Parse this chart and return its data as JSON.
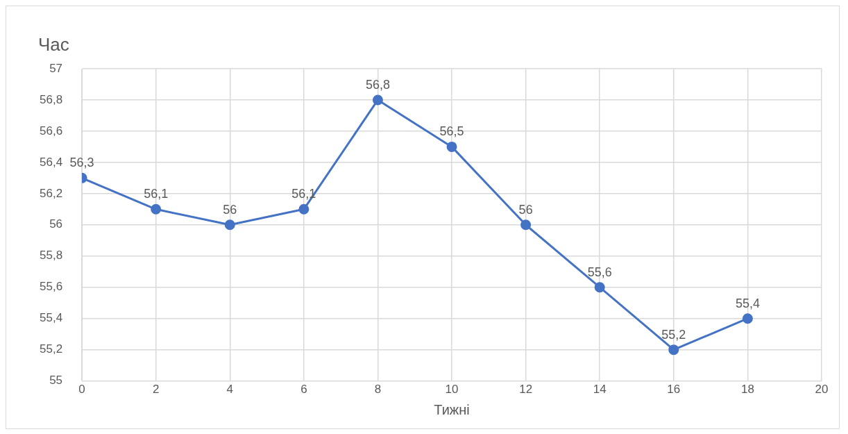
{
  "chart_data": {
    "type": "line",
    "ylabel": "Час",
    "xlabel": "Тижні",
    "x": [
      0,
      2,
      4,
      6,
      8,
      10,
      12,
      14,
      16,
      18
    ],
    "series": [
      {
        "color": "#4472c4",
        "values": [
          56.3,
          56.1,
          56,
          56.1,
          56.8,
          56.5,
          56,
          55.6,
          55.2,
          55.4
        ],
        "value_labels": [
          "56,3",
          "56,1",
          "56",
          "56,1",
          "56,8",
          "56,5",
          "56",
          "55,6",
          "55,2",
          "55,4"
        ]
      }
    ],
    "xlim": [
      0,
      20
    ],
    "xticks": [
      0,
      2,
      4,
      6,
      8,
      10,
      12,
      14,
      16,
      18,
      20
    ],
    "ylim": [
      55,
      57
    ],
    "yticks": [
      55,
      {
        "value": 55.2,
        "label": "55,2"
      },
      {
        "value": 55.4,
        "label": "55,4"
      },
      {
        "value": 55.6,
        "label": "55,6"
      },
      {
        "value": 55.8,
        "label": "55,8"
      },
      56,
      {
        "value": 56.2,
        "label": "56,2"
      },
      {
        "value": 56.4,
        "label": "56,4"
      },
      {
        "value": 56.6,
        "label": "56,6"
      },
      {
        "value": 56.8,
        "label": "56,8"
      },
      57
    ],
    "grid": true,
    "legend": false,
    "marker": "circle",
    "line_style": "solid"
  }
}
